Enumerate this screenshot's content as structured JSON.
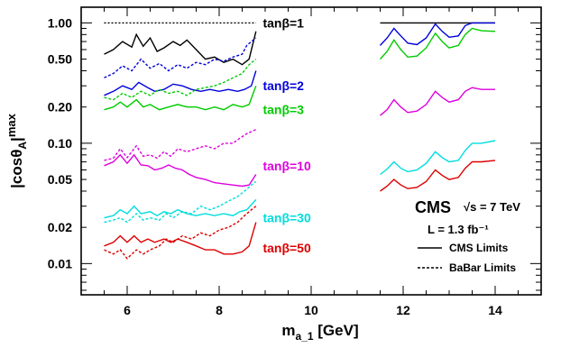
{
  "chart_data": {
    "type": "line",
    "xlabel": "m_{a_1} [GeV]",
    "ylabel": "|cosθ_A|^max",
    "xlim": [
      5.0,
      15.0
    ],
    "ylim": [
      0.0055,
      1.35
    ],
    "yscale": "log",
    "x_ticks": [
      6,
      8,
      10,
      12,
      14
    ],
    "x_tick_labels": [
      "6",
      "8",
      "10",
      "12",
      "14"
    ],
    "y_ticks": [
      0.01,
      0.02,
      0.05,
      0.1,
      0.2,
      0.5,
      1.0
    ],
    "y_tick_labels": [
      "0.01",
      "0.02",
      "0.05",
      "0.10",
      "0.20",
      "0.50",
      "1.00"
    ],
    "grid": false,
    "annotations": {
      "experiment": "CMS",
      "energy": "√s = 7 TeV",
      "luminosity": "L = 1.3 fb⁻¹",
      "legend_cms": "CMS Limits",
      "legend_babar": "BaBar Limits",
      "legend_placement": "bottom-right"
    },
    "series": [
      {
        "label": "tanβ=1",
        "color": "#000000",
        "cms_low": [
          [
            5.5,
            0.55
          ],
          [
            5.7,
            0.6
          ],
          [
            5.9,
            0.7
          ],
          [
            6.1,
            0.63
          ],
          [
            6.2,
            0.8
          ],
          [
            6.35,
            0.64
          ],
          [
            6.5,
            0.75
          ],
          [
            6.65,
            0.58
          ],
          [
            6.8,
            0.62
          ],
          [
            7.0,
            0.7
          ],
          [
            7.15,
            0.65
          ],
          [
            7.3,
            0.72
          ],
          [
            7.5,
            0.6
          ],
          [
            7.7,
            0.5
          ],
          [
            7.9,
            0.52
          ],
          [
            8.1,
            0.47
          ],
          [
            8.3,
            0.5
          ],
          [
            8.5,
            0.45
          ],
          [
            8.65,
            0.5
          ],
          [
            8.8,
            0.85
          ]
        ],
        "babar_low": [
          [
            5.5,
            1.0
          ],
          [
            8.8,
            1.0
          ]
        ],
        "cms_high": [
          [
            11.5,
            1.0
          ],
          [
            14.0,
            1.0
          ]
        ]
      },
      {
        "label": "tanβ=2",
        "color": "#0000dd",
        "cms_low": [
          [
            5.5,
            0.25
          ],
          [
            5.7,
            0.27
          ],
          [
            5.9,
            0.3
          ],
          [
            6.1,
            0.28
          ],
          [
            6.25,
            0.32
          ],
          [
            6.45,
            0.29
          ],
          [
            6.6,
            0.27
          ],
          [
            6.8,
            0.28
          ],
          [
            7.0,
            0.31
          ],
          [
            7.2,
            0.3
          ],
          [
            7.4,
            0.28
          ],
          [
            7.6,
            0.27
          ],
          [
            7.8,
            0.28
          ],
          [
            8.0,
            0.27
          ],
          [
            8.2,
            0.28
          ],
          [
            8.4,
            0.27
          ],
          [
            8.55,
            0.28
          ],
          [
            8.7,
            0.3
          ],
          [
            8.8,
            0.4
          ]
        ],
        "babar_low": [
          [
            5.5,
            0.35
          ],
          [
            5.7,
            0.38
          ],
          [
            5.9,
            0.44
          ],
          [
            6.1,
            0.4
          ],
          [
            6.3,
            0.5
          ],
          [
            6.5,
            0.42
          ],
          [
            6.7,
            0.46
          ],
          [
            6.9,
            0.4
          ],
          [
            7.1,
            0.45
          ],
          [
            7.3,
            0.42
          ],
          [
            7.5,
            0.47
          ],
          [
            7.7,
            0.45
          ],
          [
            7.9,
            0.5
          ],
          [
            8.1,
            0.48
          ],
          [
            8.3,
            0.52
          ],
          [
            8.5,
            0.55
          ],
          [
            8.6,
            0.65
          ],
          [
            8.7,
            0.7
          ],
          [
            8.8,
            0.75
          ]
        ],
        "cms_high": [
          [
            11.5,
            0.65
          ],
          [
            11.65,
            0.75
          ],
          [
            11.8,
            0.9
          ],
          [
            11.95,
            0.78
          ],
          [
            12.1,
            0.68
          ],
          [
            12.3,
            0.66
          ],
          [
            12.5,
            0.75
          ],
          [
            12.7,
            0.98
          ],
          [
            12.85,
            0.85
          ],
          [
            13.0,
            0.76
          ],
          [
            13.2,
            0.78
          ],
          [
            13.35,
            0.95
          ],
          [
            13.5,
            1.0
          ],
          [
            14.0,
            1.0
          ]
        ]
      },
      {
        "label": "tanβ=3",
        "color": "#00cc00",
        "cms_low": [
          [
            5.5,
            0.19
          ],
          [
            5.7,
            0.2
          ],
          [
            5.85,
            0.22
          ],
          [
            6.0,
            0.2
          ],
          [
            6.2,
            0.23
          ],
          [
            6.35,
            0.2
          ],
          [
            6.5,
            0.21
          ],
          [
            6.7,
            0.19
          ],
          [
            6.9,
            0.2
          ],
          [
            7.1,
            0.21
          ],
          [
            7.3,
            0.2
          ],
          [
            7.5,
            0.2
          ],
          [
            7.7,
            0.19
          ],
          [
            7.9,
            0.2
          ],
          [
            8.1,
            0.19
          ],
          [
            8.3,
            0.21
          ],
          [
            8.5,
            0.2
          ],
          [
            8.65,
            0.21
          ],
          [
            8.8,
            0.3
          ]
        ],
        "babar_low": [
          [
            5.5,
            0.24
          ],
          [
            5.7,
            0.23
          ],
          [
            5.9,
            0.26
          ],
          [
            6.1,
            0.24
          ],
          [
            6.3,
            0.27
          ],
          [
            6.5,
            0.25
          ],
          [
            6.7,
            0.28
          ],
          [
            6.9,
            0.26
          ],
          [
            7.1,
            0.27
          ],
          [
            7.3,
            0.25
          ],
          [
            7.5,
            0.28
          ],
          [
            7.7,
            0.29
          ],
          [
            7.9,
            0.3
          ],
          [
            8.1,
            0.32
          ],
          [
            8.3,
            0.35
          ],
          [
            8.5,
            0.38
          ],
          [
            8.65,
            0.45
          ],
          [
            8.8,
            0.5
          ]
        ],
        "cms_high": [
          [
            11.5,
            0.5
          ],
          [
            11.65,
            0.58
          ],
          [
            11.8,
            0.72
          ],
          [
            11.95,
            0.6
          ],
          [
            12.1,
            0.52
          ],
          [
            12.3,
            0.53
          ],
          [
            12.5,
            0.62
          ],
          [
            12.7,
            0.82
          ],
          [
            12.85,
            0.7
          ],
          [
            13.0,
            0.62
          ],
          [
            13.2,
            0.65
          ],
          [
            13.35,
            0.8
          ],
          [
            13.5,
            0.9
          ],
          [
            13.7,
            0.86
          ],
          [
            14.0,
            0.85
          ]
        ]
      },
      {
        "label": "tanβ=10",
        "color": "#dd00dd",
        "cms_low": [
          [
            5.5,
            0.065
          ],
          [
            5.7,
            0.07
          ],
          [
            5.85,
            0.08
          ],
          [
            6.0,
            0.068
          ],
          [
            6.15,
            0.08
          ],
          [
            6.3,
            0.066
          ],
          [
            6.45,
            0.065
          ],
          [
            6.6,
            0.06
          ],
          [
            6.75,
            0.062
          ],
          [
            6.9,
            0.066
          ],
          [
            7.05,
            0.062
          ],
          [
            7.2,
            0.06
          ],
          [
            7.35,
            0.055
          ],
          [
            7.5,
            0.052
          ],
          [
            7.7,
            0.05
          ],
          [
            7.9,
            0.047
          ],
          [
            8.1,
            0.046
          ],
          [
            8.3,
            0.045
          ],
          [
            8.5,
            0.044
          ],
          [
            8.65,
            0.045
          ],
          [
            8.8,
            0.055
          ]
        ],
        "babar_low": [
          [
            5.5,
            0.072
          ],
          [
            5.7,
            0.075
          ],
          [
            5.85,
            0.09
          ],
          [
            6.0,
            0.076
          ],
          [
            6.2,
            0.095
          ],
          [
            6.35,
            0.078
          ],
          [
            6.5,
            0.08
          ],
          [
            6.65,
            0.075
          ],
          [
            6.8,
            0.085
          ],
          [
            6.95,
            0.078
          ],
          [
            7.1,
            0.09
          ],
          [
            7.3,
            0.085
          ],
          [
            7.5,
            0.09
          ],
          [
            7.7,
            0.095
          ],
          [
            7.9,
            0.09
          ],
          [
            8.1,
            0.1
          ],
          [
            8.3,
            0.1
          ],
          [
            8.45,
            0.11
          ],
          [
            8.6,
            0.12
          ],
          [
            8.8,
            0.13
          ]
        ],
        "cms_high": [
          [
            11.5,
            0.17
          ],
          [
            11.65,
            0.19
          ],
          [
            11.8,
            0.23
          ],
          [
            11.95,
            0.2
          ],
          [
            12.1,
            0.18
          ],
          [
            12.3,
            0.185
          ],
          [
            12.5,
            0.21
          ],
          [
            12.7,
            0.27
          ],
          [
            12.85,
            0.24
          ],
          [
            13.0,
            0.22
          ],
          [
            13.2,
            0.23
          ],
          [
            13.35,
            0.27
          ],
          [
            13.5,
            0.29
          ],
          [
            13.7,
            0.28
          ],
          [
            14.0,
            0.28
          ]
        ]
      },
      {
        "label": "tanβ=30",
        "color": "#00dddd",
        "cms_low": [
          [
            5.5,
            0.024
          ],
          [
            5.7,
            0.025
          ],
          [
            5.85,
            0.028
          ],
          [
            6.0,
            0.026
          ],
          [
            6.15,
            0.03
          ],
          [
            6.3,
            0.026
          ],
          [
            6.5,
            0.027
          ],
          [
            6.65,
            0.025
          ],
          [
            6.8,
            0.027
          ],
          [
            6.95,
            0.026
          ],
          [
            7.1,
            0.028
          ],
          [
            7.3,
            0.026
          ],
          [
            7.5,
            0.025
          ],
          [
            7.7,
            0.026
          ],
          [
            7.9,
            0.025
          ],
          [
            8.1,
            0.026
          ],
          [
            8.3,
            0.025
          ],
          [
            8.45,
            0.027
          ],
          [
            8.6,
            0.028
          ],
          [
            8.8,
            0.034
          ]
        ],
        "babar_low": [
          [
            5.5,
            0.022
          ],
          [
            5.7,
            0.023
          ],
          [
            5.85,
            0.024
          ],
          [
            6.0,
            0.022
          ],
          [
            6.2,
            0.026
          ],
          [
            6.35,
            0.023
          ],
          [
            6.5,
            0.024
          ],
          [
            6.7,
            0.023
          ],
          [
            6.85,
            0.026
          ],
          [
            7.0,
            0.024
          ],
          [
            7.2,
            0.027
          ],
          [
            7.4,
            0.026
          ],
          [
            7.6,
            0.03
          ],
          [
            7.8,
            0.028
          ],
          [
            8.0,
            0.03
          ],
          [
            8.2,
            0.033
          ],
          [
            8.4,
            0.036
          ],
          [
            8.55,
            0.04
          ],
          [
            8.7,
            0.045
          ],
          [
            8.8,
            0.048
          ]
        ],
        "cms_high": [
          [
            11.5,
            0.055
          ],
          [
            11.65,
            0.061
          ],
          [
            11.8,
            0.07
          ],
          [
            11.95,
            0.062
          ],
          [
            12.1,
            0.058
          ],
          [
            12.3,
            0.06
          ],
          [
            12.5,
            0.068
          ],
          [
            12.7,
            0.085
          ],
          [
            12.85,
            0.076
          ],
          [
            13.0,
            0.07
          ],
          [
            13.2,
            0.072
          ],
          [
            13.35,
            0.087
          ],
          [
            13.5,
            0.1
          ],
          [
            13.7,
            0.1
          ],
          [
            14.0,
            0.105
          ]
        ]
      },
      {
        "label": "tanβ=50",
        "color": "#dd0000",
        "cms_low": [
          [
            5.5,
            0.014
          ],
          [
            5.7,
            0.015
          ],
          [
            5.85,
            0.017
          ],
          [
            6.0,
            0.015
          ],
          [
            6.15,
            0.017
          ],
          [
            6.3,
            0.015
          ],
          [
            6.45,
            0.016
          ],
          [
            6.6,
            0.015
          ],
          [
            6.8,
            0.016
          ],
          [
            6.95,
            0.015
          ],
          [
            7.1,
            0.016
          ],
          [
            7.3,
            0.015
          ],
          [
            7.5,
            0.014
          ],
          [
            7.7,
            0.013
          ],
          [
            7.9,
            0.013
          ],
          [
            8.1,
            0.012
          ],
          [
            8.3,
            0.012
          ],
          [
            8.5,
            0.0125
          ],
          [
            8.65,
            0.014
          ],
          [
            8.8,
            0.022
          ]
        ],
        "babar_low": [
          [
            5.5,
            0.013
          ],
          [
            5.7,
            0.012
          ],
          [
            5.85,
            0.013
          ],
          [
            6.0,
            0.011
          ],
          [
            6.2,
            0.013
          ],
          [
            6.35,
            0.012
          ],
          [
            6.5,
            0.013
          ],
          [
            6.7,
            0.014
          ],
          [
            6.85,
            0.016
          ],
          [
            7.0,
            0.015
          ],
          [
            7.2,
            0.017
          ],
          [
            7.4,
            0.016
          ],
          [
            7.6,
            0.018
          ],
          [
            7.8,
            0.017
          ],
          [
            8.0,
            0.019
          ],
          [
            8.2,
            0.02
          ],
          [
            8.4,
            0.022
          ],
          [
            8.55,
            0.025
          ],
          [
            8.7,
            0.028
          ],
          [
            8.8,
            0.03
          ]
        ],
        "cms_high": [
          [
            11.5,
            0.04
          ],
          [
            11.65,
            0.044
          ],
          [
            11.8,
            0.05
          ],
          [
            11.95,
            0.045
          ],
          [
            12.1,
            0.042
          ],
          [
            12.3,
            0.043
          ],
          [
            12.5,
            0.048
          ],
          [
            12.7,
            0.06
          ],
          [
            12.85,
            0.054
          ],
          [
            13.0,
            0.05
          ],
          [
            13.2,
            0.052
          ],
          [
            13.35,
            0.062
          ],
          [
            13.5,
            0.07
          ],
          [
            13.7,
            0.07
          ],
          [
            14.0,
            0.072
          ]
        ]
      }
    ]
  }
}
